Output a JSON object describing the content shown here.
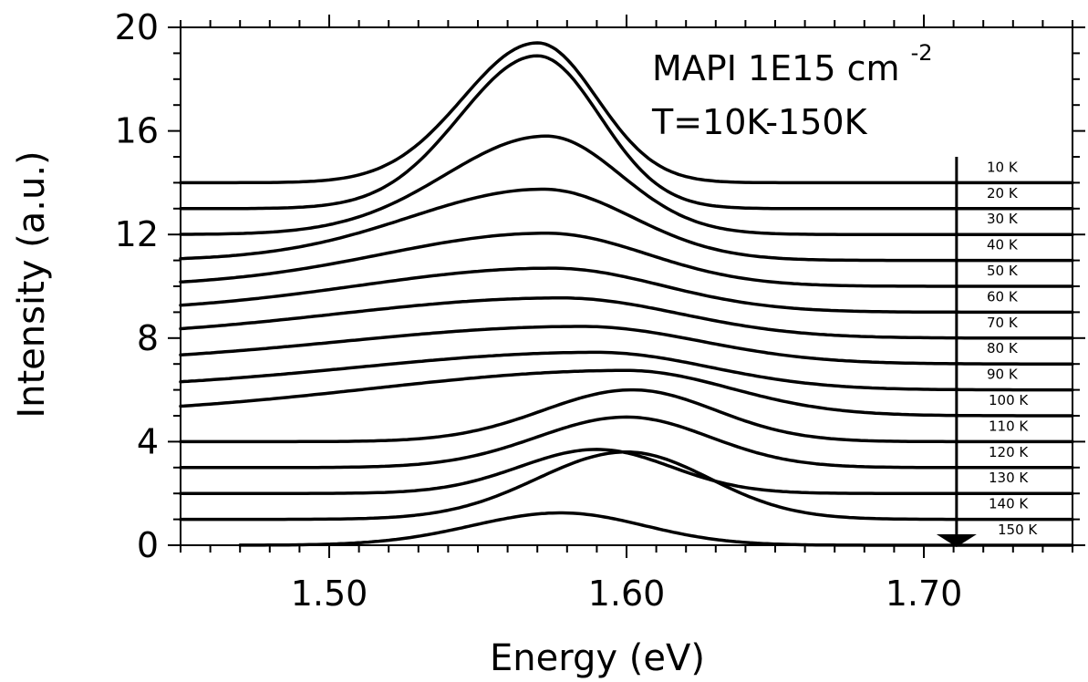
{
  "chart_data": {
    "type": "line",
    "title": "",
    "xlabel": "Energy (eV)",
    "ylabel": "Intensity (a.u.)",
    "xlim": [
      1.45,
      1.75
    ],
    "ylim": [
      0,
      20
    ],
    "x_ticks": [
      1.5,
      1.6,
      1.7
    ],
    "x_tick_labels": [
      "1.50",
      "1.60",
      "1.70"
    ],
    "y_ticks": [
      0,
      4,
      8,
      12,
      16,
      20
    ],
    "y_tick_labels": [
      "0",
      "4",
      "8",
      "12",
      "16",
      "20"
    ],
    "grid": false,
    "annotation": {
      "line1_main": "MAPI 1E15 cm",
      "line1_sup": "-2",
      "line2": "T=10K-150K"
    },
    "arrow": {
      "x": 1.711,
      "y_from": 15.0,
      "y_to": 0.0,
      "meaning": "increasing temperature"
    },
    "series": [
      {
        "label": "10 K",
        "offset": 14,
        "peaks": [
          {
            "center": 1.57,
            "height": 5.4,
            "width_left": 0.025,
            "width_right": 0.02
          }
        ],
        "x_range": [
          1.45,
          1.75
        ]
      },
      {
        "label": "20 K",
        "offset": 13,
        "peaks": [
          {
            "center": 1.57,
            "height": 5.9,
            "width_left": 0.026,
            "width_right": 0.021
          }
        ],
        "x_range": [
          1.45,
          1.75
        ]
      },
      {
        "label": "30 K",
        "offset": 12,
        "peaks": [
          {
            "center": 1.573,
            "height": 3.8,
            "width_left": 0.034,
            "width_right": 0.025
          }
        ],
        "x_range": [
          1.45,
          1.75
        ]
      },
      {
        "label": "40 K",
        "offset": 11,
        "peaks": [
          {
            "center": 1.572,
            "height": 2.75,
            "width_left": 0.045,
            "width_right": 0.03
          }
        ],
        "x_range": [
          1.45,
          1.75
        ]
      },
      {
        "label": "50 K",
        "offset": 10,
        "peaks": [
          {
            "center": 1.573,
            "height": 2.05,
            "width_left": 0.055,
            "width_right": 0.034
          }
        ],
        "x_range": [
          1.45,
          1.75
        ]
      },
      {
        "label": "60 K",
        "offset": 9,
        "peaks": [
          {
            "center": 1.575,
            "height": 1.7,
            "width_left": 0.065,
            "width_right": 0.037
          }
        ],
        "x_range": [
          1.45,
          1.75
        ]
      },
      {
        "label": "70 K",
        "offset": 8,
        "peaks": [
          {
            "center": 1.578,
            "height": 1.55,
            "width_left": 0.075,
            "width_right": 0.04
          }
        ],
        "x_range": [
          1.45,
          1.75
        ]
      },
      {
        "label": "80 K",
        "offset": 7,
        "peaks": [
          {
            "center": 1.585,
            "height": 1.45,
            "width_left": 0.08,
            "width_right": 0.04
          }
        ],
        "x_range": [
          1.45,
          1.75
        ]
      },
      {
        "label": "90 K",
        "offset": 6,
        "peaks": [
          {
            "center": 1.59,
            "height": 1.45,
            "width_left": 0.08,
            "width_right": 0.038
          }
        ],
        "x_range": [
          1.45,
          1.75
        ]
      },
      {
        "label": "100 K",
        "offset": 5,
        "peaks": [
          {
            "center": 1.6,
            "height": 1.75,
            "width_left": 0.085,
            "width_right": 0.035
          }
        ],
        "x_range": [
          1.45,
          1.75
        ]
      },
      {
        "label": "110 K",
        "offset": 4,
        "peaks": [
          {
            "center": 1.602,
            "height": 2.0,
            "width_left": 0.03,
            "width_right": 0.028
          }
        ],
        "x_range": [
          1.45,
          1.75
        ]
      },
      {
        "label": "120 K",
        "offset": 3,
        "peaks": [
          {
            "center": 1.6,
            "height": 1.95,
            "width_left": 0.03,
            "width_right": 0.028
          }
        ],
        "x_range": [
          1.45,
          1.75
        ]
      },
      {
        "label": "130 K",
        "offset": 2,
        "peaks": [
          {
            "center": 1.59,
            "height": 1.7,
            "width_left": 0.026,
            "width_right": 0.025
          }
        ],
        "x_range": [
          1.45,
          1.75
        ]
      },
      {
        "label": "140 K",
        "offset": 1,
        "peaks": [
          {
            "center": 1.6,
            "height": 2.6,
            "width_left": 0.03,
            "width_right": 0.028
          }
        ],
        "x_range": [
          1.45,
          1.75
        ]
      },
      {
        "label": "150 K",
        "offset": 0,
        "peaks": [
          {
            "center": 1.578,
            "height": 1.25,
            "width_left": 0.03,
            "width_right": 0.028
          }
        ],
        "x_range": [
          1.47,
          1.75
        ]
      }
    ]
  }
}
